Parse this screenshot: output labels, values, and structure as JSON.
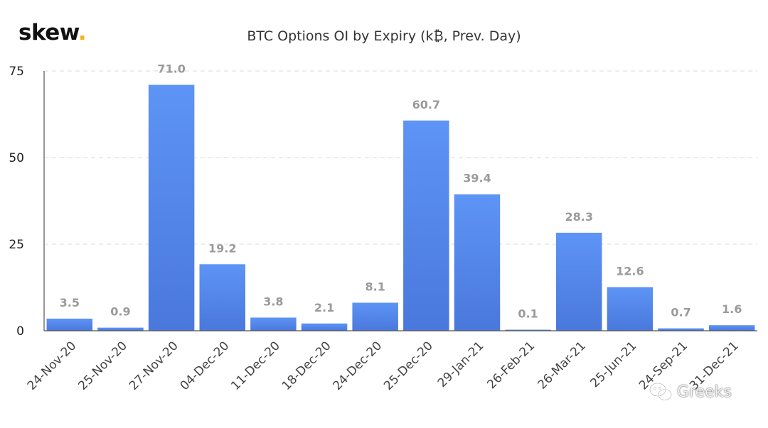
{
  "brand": {
    "name": "skew",
    "dot": "."
  },
  "watermark": {
    "text": "Greeks",
    "icon": "wechat-icon"
  },
  "colors": {
    "bar_top": "#5d94f5",
    "bar_bottom": "#4a78dc",
    "grid": "#e2e2e2",
    "axis": "#555555",
    "label": "#9a9a9a",
    "brand_dot": "#f2b51c"
  },
  "chart_data": {
    "type": "bar",
    "title": "BTC Options OI by Expiry (k₿, Prev. Day)",
    "xlabel": "",
    "ylabel": "",
    "ylim": [
      0,
      75
    ],
    "yticks": [
      0,
      25,
      50,
      75
    ],
    "grid": true,
    "categories": [
      "24-Nov-20",
      "25-Nov-20",
      "27-Nov-20",
      "04-Dec-20",
      "11-Dec-20",
      "18-Dec-20",
      "24-Dec-20",
      "25-Dec-20",
      "29-Jan-21",
      "26-Feb-21",
      "26-Mar-21",
      "25-Jun-21",
      "24-Sep-21",
      "31-Dec-21"
    ],
    "values": [
      3.5,
      0.9,
      71.0,
      19.2,
      3.8,
      2.1,
      8.1,
      60.7,
      39.4,
      0.1,
      28.3,
      12.6,
      0.7,
      1.6
    ],
    "data_labels": [
      "3.5",
      "0.9",
      "71.0",
      "19.2",
      "3.8",
      "2.1",
      "8.1",
      "60.7",
      "39.4",
      "0.1",
      "28.3",
      "12.6",
      "0.7",
      "1.6"
    ]
  }
}
